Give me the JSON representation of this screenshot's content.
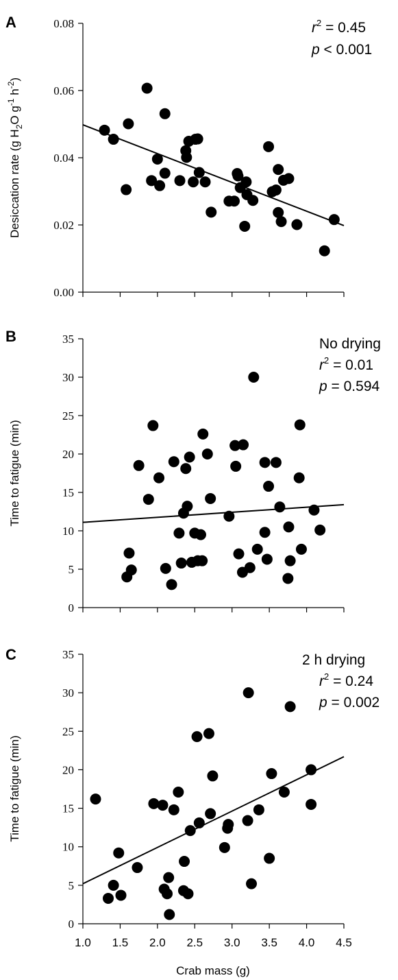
{
  "chart_data": [
    {
      "panel_label": "A",
      "type": "scatter",
      "ylabel": {
        "pre": "Desiccation rate (g H",
        "sub2": "2",
        "mid": "O g",
        "sup1": "-1",
        "mid2": " h",
        "sup2": "-2",
        "post": ")"
      },
      "xlim": [
        1.0,
        4.5
      ],
      "ylim": [
        0.0,
        0.08
      ],
      "yticks": [
        "0.00",
        "0.02",
        "0.04",
        "0.06",
        "0.08"
      ],
      "stats": {
        "r2_value": " = 0.45",
        "p_value": " < 0.001"
      },
      "trend": [
        [
          1.0,
          0.0498
        ],
        [
          4.5,
          0.0198
        ]
      ],
      "points": [
        [
          1.29,
          0.0482
        ],
        [
          1.41,
          0.0455
        ],
        [
          1.58,
          0.0305
        ],
        [
          1.61,
          0.0501
        ],
        [
          1.86,
          0.0607
        ],
        [
          1.92,
          0.0332
        ],
        [
          2.0,
          0.0396
        ],
        [
          2.03,
          0.0317
        ],
        [
          2.1,
          0.0531
        ],
        [
          2.1,
          0.0354
        ],
        [
          2.3,
          0.0332
        ],
        [
          2.38,
          0.0421
        ],
        [
          2.39,
          0.0401
        ],
        [
          2.42,
          0.0449
        ],
        [
          2.48,
          0.0328
        ],
        [
          2.51,
          0.0455
        ],
        [
          2.54,
          0.0456
        ],
        [
          2.56,
          0.0356
        ],
        [
          2.64,
          0.0328
        ],
        [
          2.72,
          0.0238
        ],
        [
          2.96,
          0.0271
        ],
        [
          3.03,
          0.0271
        ],
        [
          3.07,
          0.0353
        ],
        [
          3.08,
          0.0346
        ],
        [
          3.11,
          0.0311
        ],
        [
          3.17,
          0.0196
        ],
        [
          3.19,
          0.0328
        ],
        [
          3.2,
          0.029
        ],
        [
          3.28,
          0.0273
        ],
        [
          3.49,
          0.0433
        ],
        [
          3.54,
          0.0299
        ],
        [
          3.59,
          0.0304
        ],
        [
          3.62,
          0.0237
        ],
        [
          3.62,
          0.0365
        ],
        [
          3.66,
          0.021
        ],
        [
          3.69,
          0.0333
        ],
        [
          3.76,
          0.0338
        ],
        [
          3.87,
          0.0201
        ],
        [
          4.24,
          0.0123
        ],
        [
          4.37,
          0.0216
        ]
      ]
    },
    {
      "panel_label": "B",
      "type": "scatter",
      "ylabel": "Time to fatigue (min)",
      "xlim": [
        1.0,
        4.5
      ],
      "ylim": [
        0,
        35
      ],
      "yticks": [
        "0",
        "5",
        "10",
        "15",
        "20",
        "25",
        "30",
        "35"
      ],
      "stats": {
        "condition": "No drying",
        "r2_value": " = 0.01",
        "p_value": " = 0.594"
      },
      "trend": [
        [
          1.0,
          11.1
        ],
        [
          4.5,
          13.4
        ]
      ],
      "points": [
        [
          1.59,
          4.0
        ],
        [
          1.62,
          7.1
        ],
        [
          1.65,
          4.9
        ],
        [
          1.75,
          18.5
        ],
        [
          1.88,
          14.1
        ],
        [
          1.94,
          23.7
        ],
        [
          2.02,
          16.9
        ],
        [
          2.11,
          5.1
        ],
        [
          2.19,
          3.0
        ],
        [
          2.22,
          19.0
        ],
        [
          2.29,
          9.7
        ],
        [
          2.32,
          5.8
        ],
        [
          2.35,
          12.3
        ],
        [
          2.38,
          18.1
        ],
        [
          2.4,
          13.2
        ],
        [
          2.43,
          19.6
        ],
        [
          2.46,
          5.9
        ],
        [
          2.5,
          9.7
        ],
        [
          2.54,
          6.1
        ],
        [
          2.58,
          9.5
        ],
        [
          2.6,
          6.1
        ],
        [
          2.61,
          22.6
        ],
        [
          2.67,
          20.0
        ],
        [
          2.71,
          14.2
        ],
        [
          2.96,
          11.9
        ],
        [
          3.04,
          21.1
        ],
        [
          3.05,
          18.4
        ],
        [
          3.09,
          7.0
        ],
        [
          3.14,
          4.6
        ],
        [
          3.15,
          21.2
        ],
        [
          3.24,
          5.2
        ],
        [
          3.29,
          30.0
        ],
        [
          3.34,
          7.6
        ],
        [
          3.44,
          9.8
        ],
        [
          3.44,
          18.9
        ],
        [
          3.49,
          15.8
        ],
        [
          3.47,
          6.3
        ],
        [
          3.59,
          18.9
        ],
        [
          3.64,
          13.1
        ],
        [
          3.75,
          3.8
        ],
        [
          3.76,
          10.5
        ],
        [
          3.78,
          6.1
        ],
        [
          3.9,
          16.9
        ],
        [
          3.91,
          23.8
        ],
        [
          3.93,
          7.6
        ],
        [
          4.1,
          12.7
        ],
        [
          4.18,
          10.1
        ]
      ]
    },
    {
      "panel_label": "C",
      "type": "scatter",
      "xlabel": "Crab mass (g)",
      "ylabel": "Time to fatigue (min)",
      "xlim": [
        1.0,
        4.5
      ],
      "ylim": [
        0,
        35
      ],
      "xticks": [
        "1.0",
        "1.5",
        "2.0",
        "2.5",
        "3.0",
        "3.5",
        "4.0",
        "4.5"
      ],
      "yticks": [
        "0",
        "5",
        "10",
        "15",
        "20",
        "25",
        "30",
        "35"
      ],
      "stats": {
        "condition": "2 h drying",
        "r2_value": " = 0.24",
        "p_value": " = 0.002"
      },
      "trend": [
        [
          1.0,
          5.2
        ],
        [
          4.5,
          21.7
        ]
      ],
      "points": [
        [
          1.17,
          16.2
        ],
        [
          1.34,
          3.3
        ],
        [
          1.41,
          5.0
        ],
        [
          1.48,
          9.2
        ],
        [
          1.51,
          3.7
        ],
        [
          1.73,
          7.3
        ],
        [
          1.95,
          15.6
        ],
        [
          2.07,
          15.4
        ],
        [
          2.09,
          4.5
        ],
        [
          2.13,
          3.9
        ],
        [
          2.15,
          6.0
        ],
        [
          2.16,
          1.2
        ],
        [
          2.22,
          14.8
        ],
        [
          2.28,
          17.1
        ],
        [
          2.35,
          4.3
        ],
        [
          2.36,
          8.1
        ],
        [
          2.41,
          3.9
        ],
        [
          2.44,
          12.1
        ],
        [
          2.53,
          24.3
        ],
        [
          2.56,
          13.1
        ],
        [
          2.69,
          24.7
        ],
        [
          2.71,
          14.3
        ],
        [
          2.74,
          19.2
        ],
        [
          2.9,
          9.9
        ],
        [
          2.94,
          12.4
        ],
        [
          2.95,
          12.9
        ],
        [
          3.21,
          13.4
        ],
        [
          3.22,
          30.0
        ],
        [
          3.26,
          5.2
        ],
        [
          3.36,
          14.8
        ],
        [
          3.5,
          8.5
        ],
        [
          3.53,
          19.5
        ],
        [
          3.7,
          17.1
        ],
        [
          3.78,
          28.2
        ],
        [
          4.06,
          20.0
        ],
        [
          4.06,
          15.5
        ]
      ]
    }
  ]
}
